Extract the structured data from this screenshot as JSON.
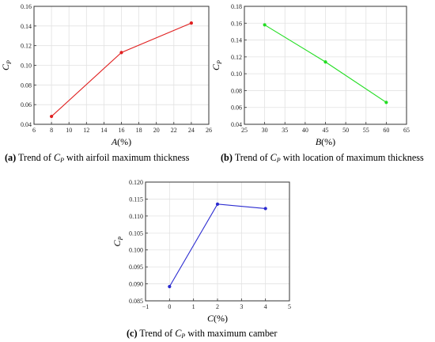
{
  "chart_data": [
    {
      "type": "line",
      "x": [
        8,
        16,
        24
      ],
      "values": [
        0.048,
        0.113,
        0.143
      ],
      "color": "#e02020",
      "xlim": [
        6,
        26
      ],
      "ylim": [
        0.04,
        0.16
      ],
      "xticks": [
        "6",
        "8",
        "10",
        "12",
        "14",
        "16",
        "18",
        "20",
        "22",
        "24",
        "26"
      ],
      "yticks": [
        "0.04",
        "0.06",
        "0.08",
        "0.10",
        "0.12",
        "0.14",
        "0.16"
      ],
      "xlabel": "A(%)",
      "ylabel": "CP",
      "grid": true,
      "caption": {
        "tag": "(a)",
        "before": " Trend of ",
        "cp_main": "C",
        "cp_sub": "P",
        "after": " with airfoil maximum thickness"
      }
    },
    {
      "type": "line",
      "x": [
        30,
        45,
        60
      ],
      "values": [
        0.158,
        0.114,
        0.066
      ],
      "color": "#22dd22",
      "xlim": [
        25,
        65
      ],
      "ylim": [
        0.04,
        0.18
      ],
      "xticks": [
        "25",
        "30",
        "35",
        "40",
        "45",
        "50",
        "55",
        "60",
        "65"
      ],
      "yticks": [
        "0.04",
        "0.06",
        "0.08",
        "0.10",
        "0.12",
        "0.14",
        "0.16",
        "0.18"
      ],
      "xlabel": "B(%)",
      "ylabel": "CP",
      "grid": true,
      "caption": {
        "tag": "(b)",
        "before": " Trend of ",
        "cp_main": "C",
        "cp_sub": "P",
        "after": " with location of maximum thickness"
      }
    },
    {
      "type": "line",
      "x": [
        0,
        2,
        4
      ],
      "values": [
        0.0892,
        0.1135,
        0.1122
      ],
      "color": "#2a2ad0",
      "xlim": [
        -1,
        5
      ],
      "ylim": [
        0.085,
        0.12
      ],
      "xticks": [
        "−1",
        "0",
        "1",
        "2",
        "3",
        "4",
        "5"
      ],
      "yticks": [
        "0.085",
        "0.090",
        "0.095",
        "0.100",
        "0.105",
        "0.110",
        "0.115",
        "0.120"
      ],
      "xlabel": "C(%)",
      "ylabel": "CP",
      "grid": true,
      "caption": {
        "tag": "(c)",
        "before": " Trend of ",
        "cp_main": "C",
        "cp_sub": "P",
        "after": " with maximum camber"
      }
    }
  ]
}
